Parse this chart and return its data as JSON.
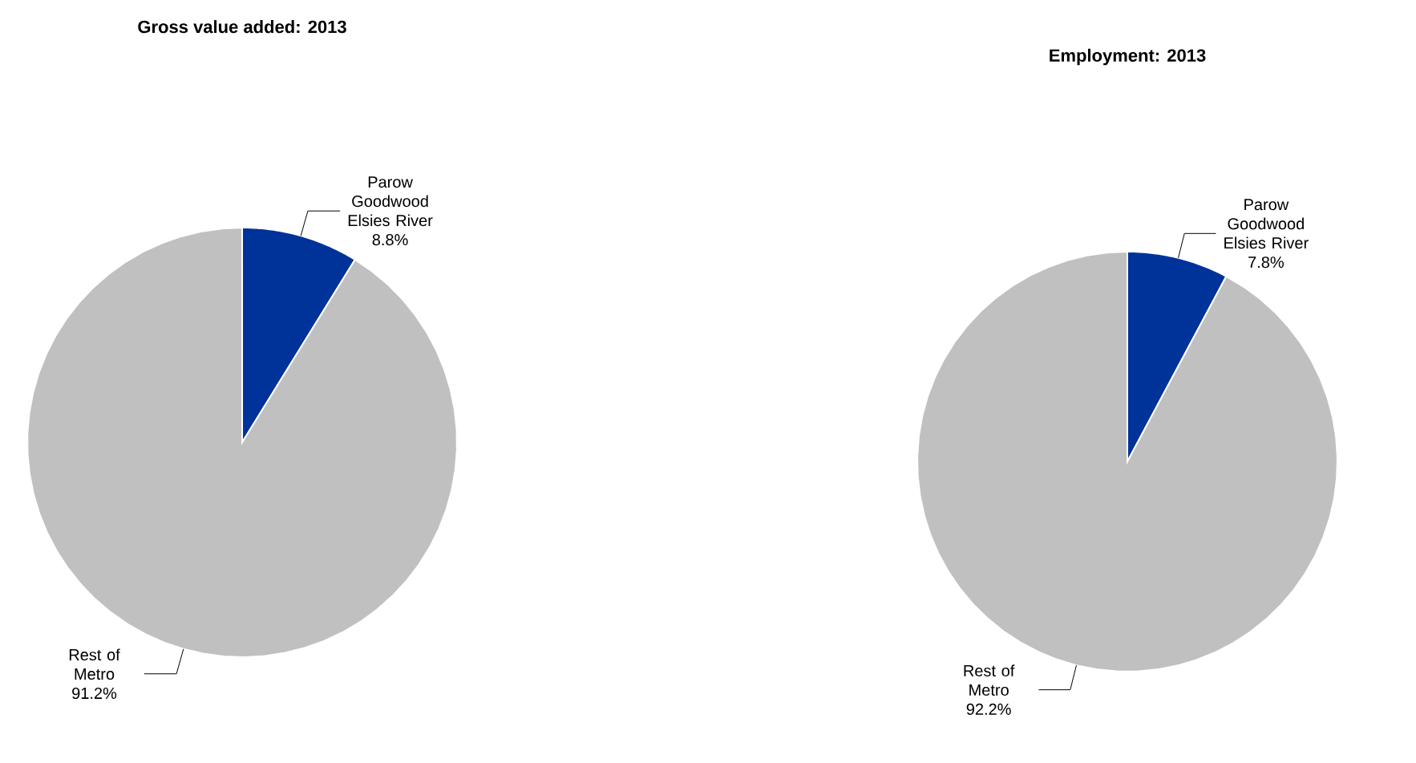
{
  "chart_data": [
    {
      "type": "pie",
      "title": "Gross value added: 2013",
      "categories": [
        "Parow Goodwood Elsies River",
        "Rest of Metro"
      ],
      "values": [
        8.8,
        91.2
      ],
      "value_labels": [
        "8.8%",
        "91.2%"
      ],
      "colors": [
        "#00339a",
        "#c0c0c0"
      ]
    },
    {
      "type": "pie",
      "title": "Employment: 2013",
      "categories": [
        "Parow Goodwood Elsies River",
        "Rest of Metro"
      ],
      "values": [
        7.8,
        92.2
      ],
      "value_labels": [
        "7.8%",
        "92.2%"
      ],
      "colors": [
        "#00339a",
        "#c0c0c0"
      ]
    }
  ]
}
